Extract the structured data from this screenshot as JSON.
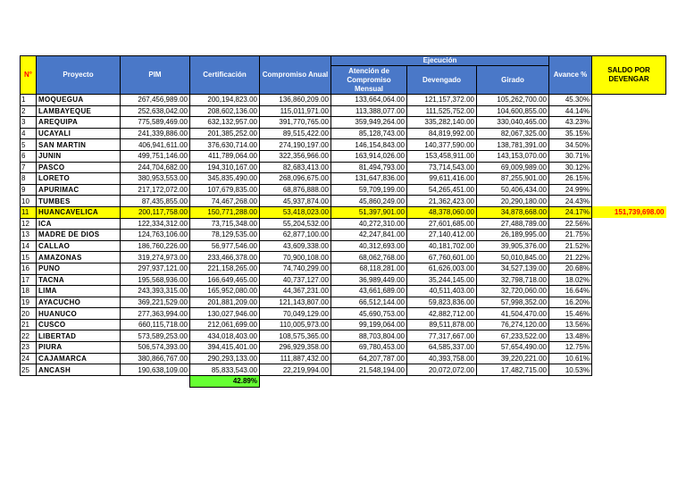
{
  "header": {
    "n": "N°",
    "project": "Proyecto",
    "pim": "PIM",
    "cert": "Certificación",
    "comp": "Compromiso Anual",
    "group": "Ejecución",
    "aten": "Atención de Compromiso Mensual",
    "dev": "Devengado",
    "gir": "Girado",
    "avance": "Avance %",
    "saldo": "SALDO POR DEVENGAR"
  },
  "rows": [
    [
      "1",
      "MOQUEGUA",
      "267,456,989.00",
      "200,194,823.00",
      "136,860,209.00",
      "133,664,064.00",
      "121,157,372.00",
      "105,262,700.00",
      "45.30%"
    ],
    [
      "2",
      "LAMBAYEQUE",
      "252,638,042.00",
      "208,602,136.00",
      "115,011,971.00",
      "113,388,077.00",
      "111,525,752.00",
      "104,600,855.00",
      "44.14%"
    ],
    [
      "3",
      "AREQUIPA",
      "775,589,469.00",
      "632,132,957.00",
      "391,770,765.00",
      "359,949,264.00",
      "335,282,140.00",
      "330,040,465.00",
      "43.23%"
    ],
    [
      "4",
      "UCAYALI",
      "241,339,886.00",
      "201,385,252.00",
      "89,515,422.00",
      "85,128,743.00",
      "84,819,992.00",
      "82,067,325.00",
      "35.15%"
    ],
    [
      "5",
      "SAN MARTIN",
      "406,941,611.00",
      "376,630,714.00",
      "274,190,197.00",
      "146,154,843.00",
      "140,377,590.00",
      "138,781,391.00",
      "34.50%"
    ],
    [
      "6",
      "JUNIN",
      "499,751,146.00",
      "411,789,064.00",
      "322,356,966.00",
      "163,914,026.00",
      "153,458,911.00",
      "143,153,070.00",
      "30.71%"
    ],
    [
      "7",
      "PASCO",
      "244,704,682.00",
      "194,310,167.00",
      "82,683,413.00",
      "81,494,793.00",
      "73,714,543.00",
      "69,009,989.00",
      "30.12%"
    ],
    [
      "8",
      "LORETO",
      "380,953,553.00",
      "345,835,490.00",
      "268,096,675.00",
      "131,647,836.00",
      "99,611,416.00",
      "87,255,901.00",
      "26.15%"
    ],
    [
      "9",
      "APURIMAC",
      "217,172,072.00",
      "107,679,835.00",
      "68,876,888.00",
      "59,709,199.00",
      "54,265,451.00",
      "50,406,434.00",
      "24.99%"
    ],
    [
      "10",
      "TUMBES",
      "87,435,855.00",
      "74,467,268.00",
      "45,937,874.00",
      "45,860,249.00",
      "21,362,423.00",
      "20,290,180.00",
      "24.43%"
    ],
    [
      "11",
      "HUANCAVELICA",
      "200,117,758.00",
      "150,771,288.00",
      "53,418,023.00",
      "51,397,901.00",
      "48,378,060.00",
      "34,878,668.00",
      "24.17%",
      "151,739,698.00"
    ],
    [
      "12",
      "ICA",
      "122,334,312.00",
      "73,715,348.00",
      "55,204,532.00",
      "40,272,310.00",
      "27,601,685.00",
      "27,488,789.00",
      "22.56%"
    ],
    [
      "13",
      "MADRE DE DIOS",
      "124,763,106.00",
      "78,129,535.00",
      "62,877,100.00",
      "42,247,841.00",
      "27,140,412.00",
      "26,189,995.00",
      "21.75%"
    ],
    [
      "14",
      "CALLAO",
      "186,760,226.00",
      "56,977,546.00",
      "43,609,338.00",
      "40,312,693.00",
      "40,181,702.00",
      "39,905,376.00",
      "21.52%"
    ],
    [
      "15",
      "AMAZONAS",
      "319,274,973.00",
      "233,466,378.00",
      "70,900,108.00",
      "68,062,768.00",
      "67,760,601.00",
      "50,010,845.00",
      "21.22%"
    ],
    [
      "16",
      "PUNO",
      "297,937,121.00",
      "221,158,265.00",
      "74,740,299.00",
      "68,118,281.00",
      "61,626,003.00",
      "34,527,139.00",
      "20.68%"
    ],
    [
      "17",
      "TACNA",
      "195,568,936.00",
      "166,649,465.00",
      "40,737,127.00",
      "36,989,449.00",
      "35,244,145.00",
      "32,798,718.00",
      "18.02%"
    ],
    [
      "18",
      "LIMA",
      "243,393,315.00",
      "165,952,080.00",
      "44,367,231.00",
      "43,661,689.00",
      "40,511,403.00",
      "32,720,060.00",
      "16.64%"
    ],
    [
      "19",
      "AYACUCHO",
      "369,221,529.00",
      "201,881,209.00",
      "121,143,807.00",
      "66,512,144.00",
      "59,823,836.00",
      "57,998,352.00",
      "16.20%"
    ],
    [
      "20",
      "HUANUCO",
      "277,363,994.00",
      "130,027,946.00",
      "70,049,129.00",
      "45,690,753.00",
      "42,882,712.00",
      "41,504,470.00",
      "15.46%"
    ],
    [
      "21",
      "CUSCO",
      "660,115,718.00",
      "212,061,699.00",
      "110,005,973.00",
      "99,199,064.00",
      "89,511,878.00",
      "76,274,120.00",
      "13.56%"
    ],
    [
      "22",
      "LIBERTAD",
      "573,589,253.00",
      "434,018,403.00",
      "108,575,365.00",
      "88,703,804.00",
      "77,317,667.00",
      "67,233,522.00",
      "13.48%"
    ],
    [
      "23",
      "PIURA",
      "506,574,393.00",
      "394,415,401.00",
      "296,929,358.00",
      "69,780,453.00",
      "64,585,337.00",
      "57,654,490.00",
      "12.75%"
    ],
    [
      "24",
      "CAJAMARCA",
      "380,866,767.00",
      "290,293,133.00",
      "111,887,432.00",
      "64,207,787.00",
      "40,393,758.00",
      "39,220,221.00",
      "10.61%"
    ],
    [
      "25",
      "ANCASH",
      "190,638,109.00",
      "85,833,543.00",
      "22,219,994.00",
      "21,548,194.00",
      "20,072,072.00",
      "17,482,715.00",
      "10.53%"
    ]
  ],
  "footer": {
    "certificacion": "42.89%"
  }
}
